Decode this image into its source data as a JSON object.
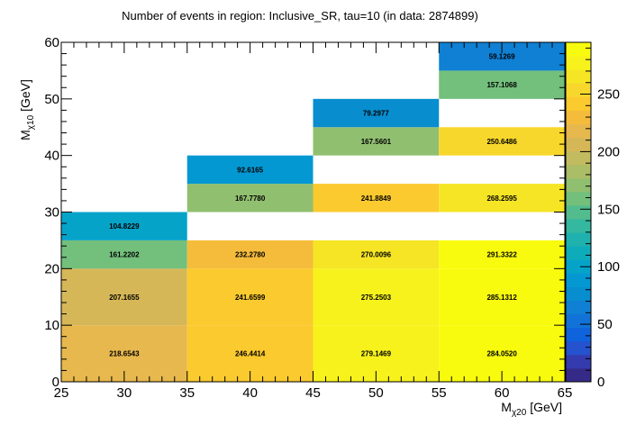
{
  "chart_data": {
    "type": "heatmap",
    "title": "Number of events in region: Inclusive_SR, tau=10 (in data: 2874899)",
    "xlabel": {
      "main": "M",
      "sub": "χ20",
      "unit": " [GeV]"
    },
    "ylabel": {
      "main": "M",
      "sub": "χ10",
      "unit": " [GeV]"
    },
    "xlim": [
      25,
      65
    ],
    "ylim": [
      0,
      60
    ],
    "xticks": [
      25,
      30,
      35,
      40,
      45,
      50,
      55,
      60,
      65
    ],
    "yticks": [
      0,
      10,
      20,
      30,
      40,
      50,
      60
    ],
    "zlim": [
      0,
      295
    ],
    "zticks": [
      0,
      50,
      100,
      150,
      200,
      250
    ],
    "cells": [
      {
        "x0": 25,
        "x1": 35,
        "y0": 0,
        "y1": 10,
        "value": 218.6543,
        "label": "218.6543"
      },
      {
        "x0": 25,
        "x1": 35,
        "y0": 10,
        "y1": 20,
        "value": 207.1655,
        "label": "207.1655"
      },
      {
        "x0": 25,
        "x1": 35,
        "y0": 20,
        "y1": 25,
        "value": 161.2202,
        "label": "161.2202"
      },
      {
        "x0": 25,
        "x1": 35,
        "y0": 25,
        "y1": 30,
        "value": 104.8229,
        "label": "104.8229"
      },
      {
        "x0": 35,
        "x1": 45,
        "y0": 0,
        "y1": 10,
        "value": 246.4414,
        "label": "246.4414"
      },
      {
        "x0": 35,
        "x1": 45,
        "y0": 10,
        "y1": 20,
        "value": 241.6599,
        "label": "241.6599"
      },
      {
        "x0": 35,
        "x1": 45,
        "y0": 20,
        "y1": 25,
        "value": 232.278,
        "label": "232.2780"
      },
      {
        "x0": 35,
        "x1": 45,
        "y0": 30,
        "y1": 35,
        "value": 167.778,
        "label": "167.7780"
      },
      {
        "x0": 35,
        "x1": 45,
        "y0": 35,
        "y1": 40,
        "value": 92.6165,
        "label": "92.6165"
      },
      {
        "x0": 45,
        "x1": 55,
        "y0": 0,
        "y1": 10,
        "value": 279.1469,
        "label": "279.1469"
      },
      {
        "x0": 45,
        "x1": 55,
        "y0": 10,
        "y1": 20,
        "value": 275.2503,
        "label": "275.2503"
      },
      {
        "x0": 45,
        "x1": 55,
        "y0": 20,
        "y1": 25,
        "value": 270.0096,
        "label": "270.0096"
      },
      {
        "x0": 45,
        "x1": 55,
        "y0": 30,
        "y1": 35,
        "value": 241.8849,
        "label": "241.8849"
      },
      {
        "x0": 45,
        "x1": 55,
        "y0": 40,
        "y1": 45,
        "value": 167.5601,
        "label": "167.5601"
      },
      {
        "x0": 45,
        "x1": 55,
        "y0": 45,
        "y1": 50,
        "value": 79.2977,
        "label": "79.2977"
      },
      {
        "x0": 55,
        "x1": 65,
        "y0": 0,
        "y1": 10,
        "value": 284.052,
        "label": "284.0520"
      },
      {
        "x0": 55,
        "x1": 65,
        "y0": 10,
        "y1": 20,
        "value": 285.1312,
        "label": "285.1312"
      },
      {
        "x0": 55,
        "x1": 65,
        "y0": 20,
        "y1": 25,
        "value": 291.3322,
        "label": "291.3322"
      },
      {
        "x0": 55,
        "x1": 65,
        "y0": 30,
        "y1": 35,
        "value": 268.2595,
        "label": "268.2595"
      },
      {
        "x0": 55,
        "x1": 65,
        "y0": 40,
        "y1": 45,
        "value": 250.6486,
        "label": "250.6486"
      },
      {
        "x0": 55,
        "x1": 65,
        "y0": 50,
        "y1": 55,
        "value": 157.1068,
        "label": "157.1068"
      },
      {
        "x0": 55,
        "x1": 65,
        "y0": 55,
        "y1": 60,
        "value": 59.1269,
        "label": "59.1269"
      }
    ],
    "palette": [
      "#352a87",
      "#343bae",
      "#2552ce",
      "#0f63dc",
      "#1272d8",
      "#0f80d3",
      "#088dcf",
      "#0498d2",
      "#06a3c9",
      "#0eabba",
      "#1fb1ad",
      "#34b8a0",
      "#52bc8e",
      "#73bf7c",
      "#91bf70",
      "#abbd66",
      "#c3bb5f",
      "#d6b757",
      "#e7b84d",
      "#f5bc3b",
      "#fbca2e",
      "#f8d72d",
      "#f6e524",
      "#f7f21c",
      "#f9fb0e"
    ],
    "grid": false,
    "legend": "colorbar-right"
  }
}
